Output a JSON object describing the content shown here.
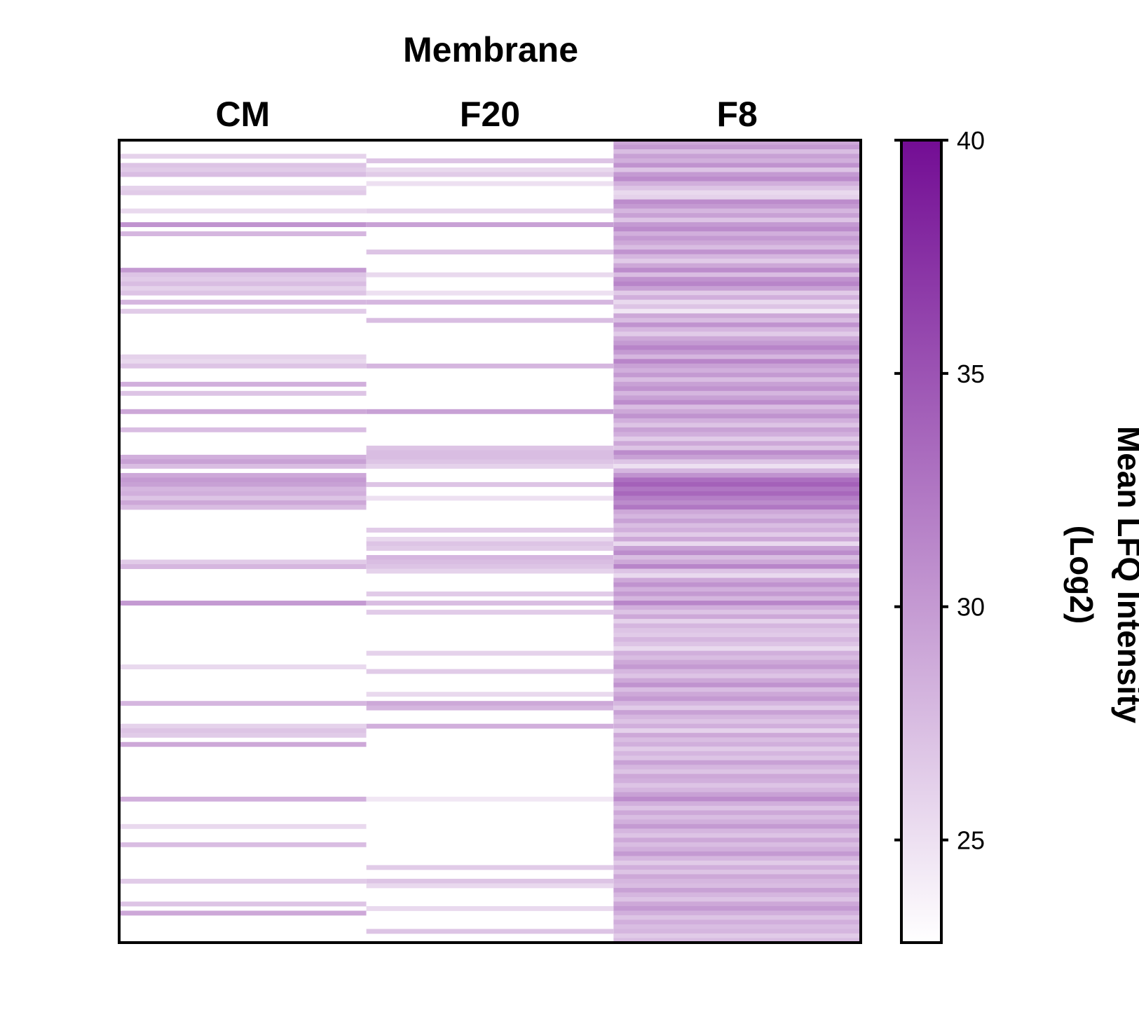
{
  "chart_data": {
    "type": "heatmap",
    "title": "Membrane",
    "columns": [
      "CM",
      "F20",
      "F8"
    ],
    "row_count": 176,
    "colorbar": {
      "label": "Mean LFQ Intensity\n(Log2)",
      "label_line1": "Mean LFQ Intensity",
      "label_line2": "(Log2)",
      "range": [
        22.8,
        40
      ],
      "ticks": [
        25,
        30,
        35,
        40
      ],
      "tick_labels": [
        "25",
        "30",
        "35",
        "40"
      ],
      "color_low": "#ffffff",
      "color_high": "#730d94"
    },
    "columns_data": {
      "CM": {
        "background": 22.8,
        "bands": [
          [
            3,
            26.0
          ],
          [
            5,
            27.0
          ],
          [
            6,
            26.5
          ],
          [
            7,
            27.5
          ],
          [
            10,
            26.0
          ],
          [
            11,
            26.5
          ],
          [
            15,
            25.5
          ],
          [
            18,
            30.5
          ],
          [
            20,
            28.0
          ],
          [
            28,
            30.0
          ],
          [
            29,
            27.0
          ],
          [
            30,
            26.5
          ],
          [
            31,
            27.5
          ],
          [
            32,
            26.0
          ],
          [
            33,
            27.0
          ],
          [
            35,
            28.0
          ],
          [
            37,
            26.5
          ],
          [
            47,
            26.0
          ],
          [
            48,
            25.5
          ],
          [
            49,
            27.0
          ],
          [
            53,
            28.5
          ],
          [
            55,
            27.0
          ],
          [
            59,
            29.0
          ],
          [
            63,
            27.5
          ],
          [
            69,
            28.5
          ],
          [
            70,
            29.5
          ],
          [
            71,
            27.5
          ],
          [
            73,
            29.0
          ],
          [
            74,
            30.0
          ],
          [
            75,
            29.5
          ],
          [
            76,
            28.0
          ],
          [
            77,
            28.5
          ],
          [
            78,
            27.0
          ],
          [
            79,
            29.0
          ],
          [
            80,
            27.5
          ],
          [
            92,
            26.5
          ],
          [
            93,
            28.0
          ],
          [
            101,
            30.0
          ],
          [
            115,
            25.5
          ],
          [
            123,
            28.0
          ],
          [
            128,
            26.0
          ],
          [
            129,
            27.0
          ],
          [
            130,
            26.5
          ],
          [
            132,
            29.0
          ],
          [
            144,
            28.5
          ],
          [
            150,
            25.5
          ],
          [
            154,
            27.5
          ],
          [
            162,
            26.5
          ],
          [
            167,
            27.0
          ],
          [
            169,
            29.0
          ]
        ]
      },
      "F20": {
        "background": 22.8,
        "bands": [
          [
            4,
            27.0
          ],
          [
            6,
            25.5
          ],
          [
            7,
            26.5
          ],
          [
            9,
            25.0
          ],
          [
            15,
            26.0
          ],
          [
            18,
            29.5
          ],
          [
            24,
            27.0
          ],
          [
            29,
            25.5
          ],
          [
            33,
            25.0
          ],
          [
            35,
            28.0
          ],
          [
            39,
            27.5
          ],
          [
            49,
            28.0
          ],
          [
            59,
            29.5
          ],
          [
            67,
            27.0
          ],
          [
            68,
            27.5
          ],
          [
            69,
            27.5
          ],
          [
            70,
            27.0
          ],
          [
            71,
            26.0
          ],
          [
            75,
            27.0
          ],
          [
            78,
            25.0
          ],
          [
            85,
            26.5
          ],
          [
            87,
            25.5
          ],
          [
            88,
            27.0
          ],
          [
            89,
            26.5
          ],
          [
            91,
            28.0
          ],
          [
            92,
            27.5
          ],
          [
            93,
            27.0
          ],
          [
            94,
            26.0
          ],
          [
            99,
            26.5
          ],
          [
            101,
            27.5
          ],
          [
            103,
            26.5
          ],
          [
            112,
            26.0
          ],
          [
            116,
            26.5
          ],
          [
            121,
            25.5
          ],
          [
            123,
            29.0
          ],
          [
            124,
            28.0
          ],
          [
            128,
            28.5
          ],
          [
            144,
            24.5
          ],
          [
            159,
            26.5
          ],
          [
            162,
            27.0
          ],
          [
            163,
            25.5
          ],
          [
            168,
            25.5
          ],
          [
            173,
            27.0
          ]
        ]
      },
      "F8": {
        "background": 22.8,
        "bands": [
          [
            0,
            29.0
          ],
          [
            1,
            30.0
          ],
          [
            2,
            27.5
          ],
          [
            3,
            29.5
          ],
          [
            4,
            28.5
          ],
          [
            5,
            30.5
          ],
          [
            6,
            27.0
          ],
          [
            7,
            30.0
          ],
          [
            8,
            31.0
          ],
          [
            9,
            28.5
          ],
          [
            10,
            27.0
          ],
          [
            11,
            25.5
          ],
          [
            12,
            26.0
          ],
          [
            13,
            31.0
          ],
          [
            14,
            30.0
          ],
          [
            15,
            28.0
          ],
          [
            16,
            29.5
          ],
          [
            17,
            27.0
          ],
          [
            18,
            30.0
          ],
          [
            19,
            31.0
          ],
          [
            20,
            28.5
          ],
          [
            21,
            30.0
          ],
          [
            22,
            29.0
          ],
          [
            23,
            27.5
          ],
          [
            24,
            30.5
          ],
          [
            25,
            28.0
          ],
          [
            26,
            26.5
          ],
          [
            27,
            29.0
          ],
          [
            28,
            31.0
          ],
          [
            29,
            27.5
          ],
          [
            30,
            30.5
          ],
          [
            31,
            31.5
          ],
          [
            32,
            29.5
          ],
          [
            33,
            26.5
          ],
          [
            34,
            28.5
          ],
          [
            35,
            25.5
          ],
          [
            36,
            27.0
          ],
          [
            37,
            24.5
          ],
          [
            38,
            29.0
          ],
          [
            39,
            27.5
          ],
          [
            40,
            30.5
          ],
          [
            41,
            28.0
          ],
          [
            42,
            26.5
          ],
          [
            43,
            29.0
          ],
          [
            44,
            30.0
          ],
          [
            45,
            31.5
          ],
          [
            46,
            30.0
          ],
          [
            47,
            28.0
          ],
          [
            48,
            31.5
          ],
          [
            49,
            29.5
          ],
          [
            50,
            28.5
          ],
          [
            51,
            30.0
          ],
          [
            52,
            27.5
          ],
          [
            53,
            29.5
          ],
          [
            54,
            30.5
          ],
          [
            55,
            28.0
          ],
          [
            56,
            29.5
          ],
          [
            57,
            31.0
          ],
          [
            58,
            27.5
          ],
          [
            59,
            29.0
          ],
          [
            60,
            30.5
          ],
          [
            61,
            28.5
          ],
          [
            62,
            27.0
          ],
          [
            63,
            29.5
          ],
          [
            64,
            28.5
          ],
          [
            65,
            26.5
          ],
          [
            66,
            29.0
          ],
          [
            67,
            27.0
          ],
          [
            68,
            31.0
          ],
          [
            69,
            29.5
          ],
          [
            70,
            27.0
          ],
          [
            71,
            25.0
          ],
          [
            72,
            28.0
          ],
          [
            73,
            30.5
          ],
          [
            74,
            33.0
          ],
          [
            75,
            34.0
          ],
          [
            76,
            32.5
          ],
          [
            77,
            33.5
          ],
          [
            78,
            32.0
          ],
          [
            79,
            31.0
          ],
          [
            80,
            32.5
          ],
          [
            81,
            29.0
          ],
          [
            82,
            28.0
          ],
          [
            83,
            29.5
          ],
          [
            84,
            27.5
          ],
          [
            85,
            28.5
          ],
          [
            86,
            26.5
          ],
          [
            87,
            29.0
          ],
          [
            88,
            25.5
          ],
          [
            89,
            29.5
          ],
          [
            90,
            31.0
          ],
          [
            91,
            27.5
          ],
          [
            92,
            29.0
          ],
          [
            93,
            31.5
          ],
          [
            94,
            27.0
          ],
          [
            95,
            25.5
          ],
          [
            96,
            29.0
          ],
          [
            97,
            30.5
          ],
          [
            98,
            28.5
          ],
          [
            99,
            30.0
          ],
          [
            100,
            28.0
          ],
          [
            101,
            31.5
          ],
          [
            102,
            28.5
          ],
          [
            103,
            27.0
          ],
          [
            104,
            29.0
          ],
          [
            105,
            26.0
          ],
          [
            106,
            28.0
          ],
          [
            107,
            27.0
          ],
          [
            108,
            26.5
          ],
          [
            109,
            28.0
          ],
          [
            110,
            27.0
          ],
          [
            111,
            25.5
          ],
          [
            112,
            28.5
          ],
          [
            113,
            27.5
          ],
          [
            114,
            29.0
          ],
          [
            115,
            30.0
          ],
          [
            116,
            28.0
          ],
          [
            117,
            27.0
          ],
          [
            118,
            29.0
          ],
          [
            119,
            30.5
          ],
          [
            120,
            27.5
          ],
          [
            121,
            29.0
          ],
          [
            122,
            30.0
          ],
          [
            123,
            28.0
          ],
          [
            124,
            26.5
          ],
          [
            125,
            29.5
          ],
          [
            126,
            28.0
          ],
          [
            127,
            27.0
          ],
          [
            128,
            28.5
          ],
          [
            129,
            26.0
          ],
          [
            130,
            29.0
          ],
          [
            131,
            27.5
          ],
          [
            132,
            28.5
          ],
          [
            133,
            26.5
          ],
          [
            134,
            28.0
          ],
          [
            135,
            27.0
          ],
          [
            136,
            29.5
          ],
          [
            137,
            28.0
          ],
          [
            138,
            27.0
          ],
          [
            139,
            29.0
          ],
          [
            140,
            28.5
          ],
          [
            141,
            27.0
          ],
          [
            142,
            28.0
          ],
          [
            143,
            29.5
          ],
          [
            144,
            31.0
          ],
          [
            145,
            28.5
          ],
          [
            146,
            27.0
          ],
          [
            147,
            29.0
          ],
          [
            148,
            27.5
          ],
          [
            149,
            28.5
          ],
          [
            150,
            30.0
          ],
          [
            151,
            28.0
          ],
          [
            152,
            27.0
          ],
          [
            153,
            29.0
          ],
          [
            154,
            27.5
          ],
          [
            155,
            28.5
          ],
          [
            156,
            30.0
          ],
          [
            157,
            28.0
          ],
          [
            158,
            26.5
          ],
          [
            159,
            28.5
          ],
          [
            160,
            27.0
          ],
          [
            161,
            29.0
          ],
          [
            162,
            28.0
          ],
          [
            163,
            27.5
          ],
          [
            164,
            29.5
          ],
          [
            165,
            28.0
          ],
          [
            166,
            27.0
          ],
          [
            167,
            29.0
          ],
          [
            168,
            30.0
          ],
          [
            169,
            28.5
          ],
          [
            170,
            27.0
          ],
          [
            171,
            28.5
          ],
          [
            172,
            27.5
          ],
          [
            173,
            28.0
          ],
          [
            174,
            26.5
          ],
          [
            175,
            27.5
          ]
        ]
      }
    }
  }
}
